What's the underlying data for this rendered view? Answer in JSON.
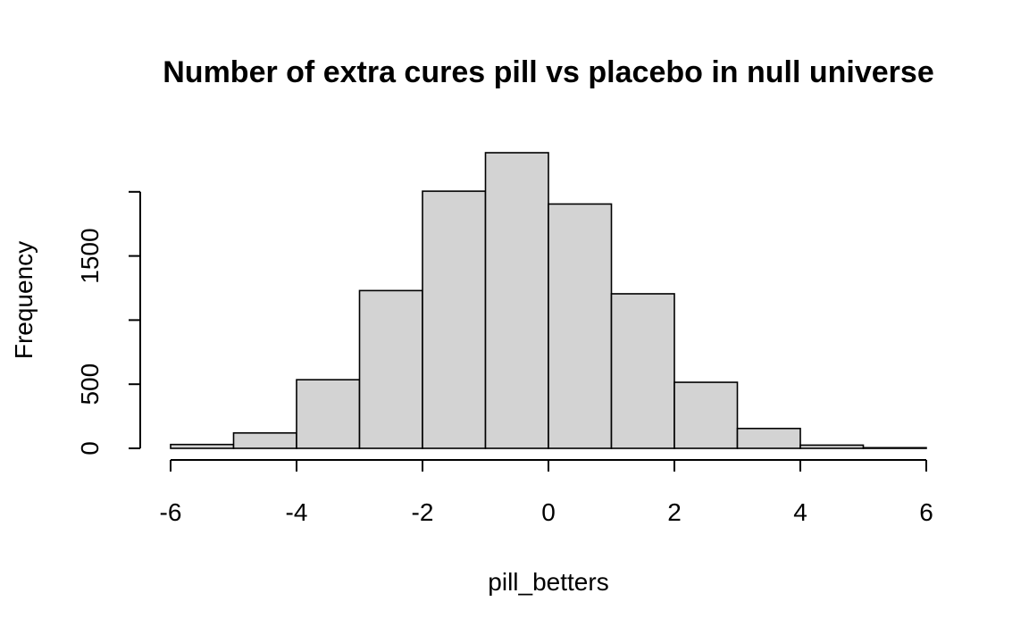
{
  "chart_data": {
    "type": "bar",
    "title": "Number of extra cures pill vs placebo in null universe",
    "xlabel": "pill_betters",
    "ylabel": "Frequency",
    "bin_edges": [
      -6,
      -5,
      -4,
      -3,
      -2,
      -1,
      0,
      1,
      2,
      3,
      4,
      5,
      6
    ],
    "values": [
      30,
      120,
      535,
      1230,
      2005,
      2305,
      1905,
      1205,
      515,
      155,
      25,
      5
    ],
    "xlim": [
      -6,
      6
    ],
    "ylim": [
      0,
      2305
    ],
    "x_ticks": [
      -6,
      -4,
      -2,
      0,
      2,
      4,
      6
    ],
    "y_ticks": [
      0,
      500,
      1000,
      1500,
      2000
    ],
    "y_tick_labels": [
      "0",
      "500",
      "",
      "1500",
      ""
    ],
    "grid": false,
    "bar_fill": "#d3d3d3",
    "bar_stroke": "#000000"
  }
}
